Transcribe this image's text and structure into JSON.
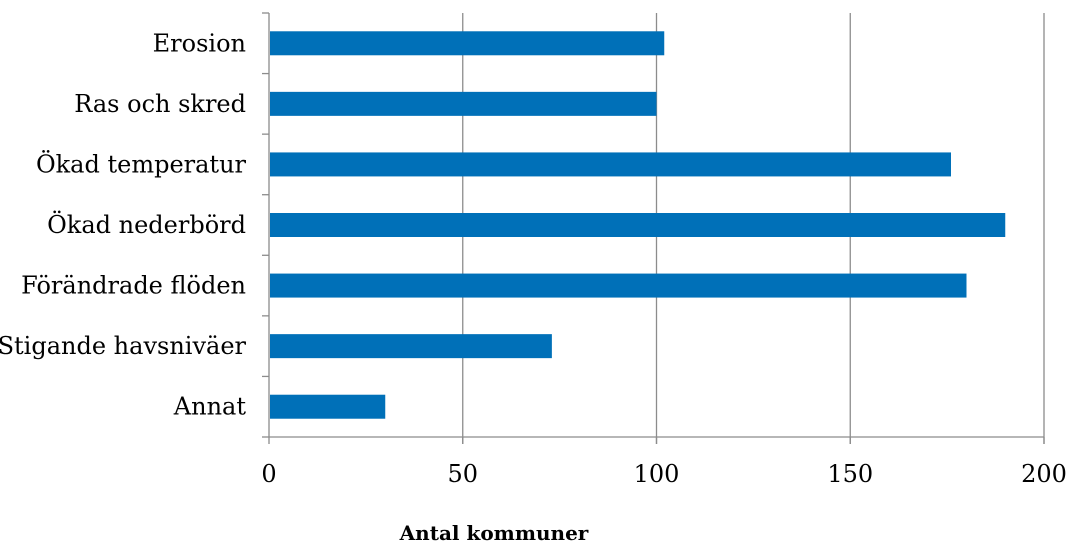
{
  "chart_data": {
    "type": "bar",
    "orientation": "horizontal",
    "categories": [
      "Erosion",
      "Ras och skred",
      "Ökad temperatur ",
      "Ökad nederbörd ",
      "Förändrade flöden",
      "Stigande havsniväer",
      "Annat"
    ],
    "values": [
      102,
      100,
      176,
      190,
      180,
      73,
      30
    ],
    "xlim": [
      0,
      200
    ],
    "xticks": [
      0,
      50,
      100,
      150,
      200
    ],
    "xlabel": "Antal kommuner",
    "ylabel": "",
    "title": "",
    "grid": "vertical",
    "legend": "none",
    "colors": {
      "bar": "#0070B8",
      "grid": "#8C8C8C",
      "axis": "#8C8C8C"
    }
  }
}
